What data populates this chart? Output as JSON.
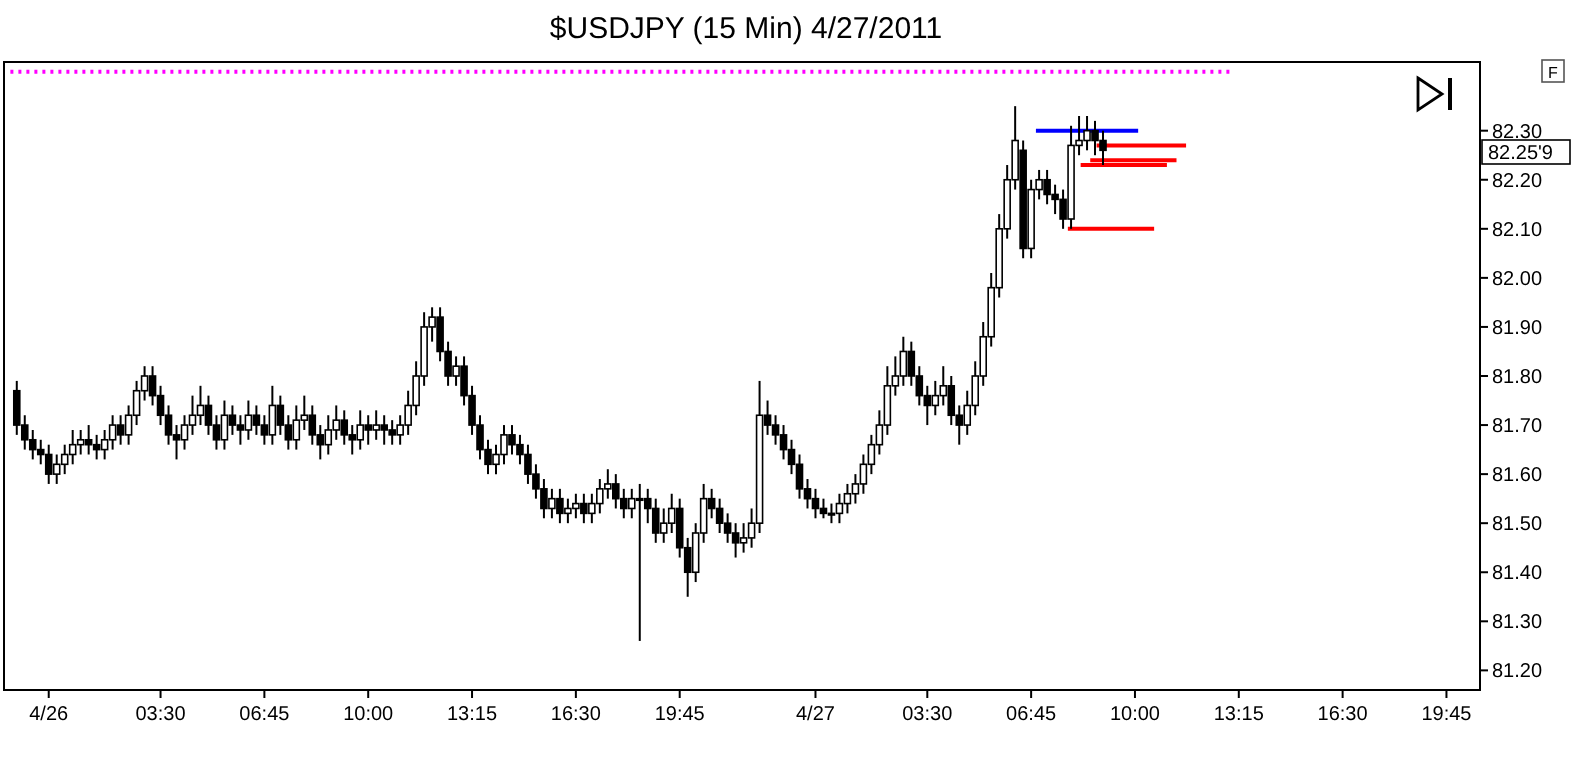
{
  "chart_data": {
    "type": "candlestick",
    "title": "$USDJPY (15 Min)  4/27/2011",
    "x": [
      "2011-04-25T23:00",
      "2011-04-25T23:15",
      "2011-04-25T23:30",
      "2011-04-25T23:45",
      "2011-04-26T00:00",
      "2011-04-26T00:15",
      "2011-04-26T00:30",
      "2011-04-26T00:45",
      "2011-04-26T01:00",
      "2011-04-26T01:15",
      "2011-04-26T01:30",
      "2011-04-26T01:45",
      "2011-04-26T02:00",
      "2011-04-26T02:15",
      "2011-04-26T02:30",
      "2011-04-26T02:45",
      "2011-04-26T03:00",
      "2011-04-26T03:15",
      "2011-04-26T03:30",
      "2011-04-26T03:45",
      "2011-04-26T04:00",
      "2011-04-26T04:15",
      "2011-04-26T04:30",
      "2011-04-26T04:45",
      "2011-04-26T05:00",
      "2011-04-26T05:15",
      "2011-04-26T05:30",
      "2011-04-26T05:45",
      "2011-04-26T06:00",
      "2011-04-26T06:15",
      "2011-04-26T06:30",
      "2011-04-26T06:45",
      "2011-04-26T07:00",
      "2011-04-26T07:15",
      "2011-04-26T07:30",
      "2011-04-26T07:45",
      "2011-04-26T08:00",
      "2011-04-26T08:15",
      "2011-04-26T08:30",
      "2011-04-26T08:45",
      "2011-04-26T09:00",
      "2011-04-26T09:15",
      "2011-04-26T09:30",
      "2011-04-26T09:45",
      "2011-04-26T10:00",
      "2011-04-26T10:15",
      "2011-04-26T10:30",
      "2011-04-26T10:45",
      "2011-04-26T11:00",
      "2011-04-26T11:15",
      "2011-04-26T11:30",
      "2011-04-26T11:45",
      "2011-04-26T12:00",
      "2011-04-26T12:15",
      "2011-04-26T12:30",
      "2011-04-26T12:45",
      "2011-04-26T13:00",
      "2011-04-26T13:15",
      "2011-04-26T13:30",
      "2011-04-26T13:45",
      "2011-04-26T14:00",
      "2011-04-26T14:15",
      "2011-04-26T14:30",
      "2011-04-26T14:45",
      "2011-04-26T15:00",
      "2011-04-26T15:15",
      "2011-04-26T15:30",
      "2011-04-26T15:45",
      "2011-04-26T16:00",
      "2011-04-26T16:15",
      "2011-04-26T16:30",
      "2011-04-26T16:45",
      "2011-04-26T17:00",
      "2011-04-26T17:15",
      "2011-04-26T17:30",
      "2011-04-26T17:45",
      "2011-04-26T18:00",
      "2011-04-26T18:15",
      "2011-04-26T18:30",
      "2011-04-26T18:45",
      "2011-04-26T19:00",
      "2011-04-26T19:15",
      "2011-04-26T19:30",
      "2011-04-26T19:45",
      "2011-04-26T20:00",
      "2011-04-26T20:15",
      "2011-04-26T20:30",
      "2011-04-26T20:45",
      "2011-04-26T21:00",
      "2011-04-26T21:15",
      "2011-04-26T21:30",
      "2011-04-26T21:45",
      "2011-04-26T22:00",
      "2011-04-26T22:15",
      "2011-04-26T22:30",
      "2011-04-26T22:45",
      "2011-04-26T23:00",
      "2011-04-26T23:15",
      "2011-04-26T23:30",
      "2011-04-26T23:45",
      "2011-04-27T00:00",
      "2011-04-27T00:15",
      "2011-04-27T00:30",
      "2011-04-27T00:45",
      "2011-04-27T01:00",
      "2011-04-27T01:15",
      "2011-04-27T01:30",
      "2011-04-27T01:45",
      "2011-04-27T02:00",
      "2011-04-27T02:15",
      "2011-04-27T02:30",
      "2011-04-27T02:45",
      "2011-04-27T03:00",
      "2011-04-27T03:15",
      "2011-04-27T03:30",
      "2011-04-27T03:45",
      "2011-04-27T04:00",
      "2011-04-27T04:15",
      "2011-04-27T04:30",
      "2011-04-27T04:45",
      "2011-04-27T05:00",
      "2011-04-27T05:15",
      "2011-04-27T05:30",
      "2011-04-27T05:45",
      "2011-04-27T06:00",
      "2011-04-27T06:15",
      "2011-04-27T06:30",
      "2011-04-27T06:45",
      "2011-04-27T07:00",
      "2011-04-27T07:15",
      "2011-04-27T07:30",
      "2011-04-27T07:45",
      "2011-04-27T08:00",
      "2011-04-27T08:15",
      "2011-04-27T08:30",
      "2011-04-27T08:45",
      "2011-04-27T09:00"
    ],
    "ohlc": [
      [
        81.77,
        81.79,
        81.68,
        81.7
      ],
      [
        81.7,
        81.72,
        81.65,
        81.67
      ],
      [
        81.67,
        81.69,
        81.63,
        81.65
      ],
      [
        81.65,
        81.67,
        81.62,
        81.64
      ],
      [
        81.64,
        81.66,
        81.58,
        81.6
      ],
      [
        81.6,
        81.64,
        81.58,
        81.62
      ],
      [
        81.62,
        81.66,
        81.6,
        81.64
      ],
      [
        81.64,
        81.69,
        81.62,
        81.66
      ],
      [
        81.66,
        81.69,
        81.64,
        81.67
      ],
      [
        81.67,
        81.7,
        81.64,
        81.66
      ],
      [
        81.66,
        81.68,
        81.63,
        81.65
      ],
      [
        81.65,
        81.69,
        81.63,
        81.67
      ],
      [
        81.67,
        81.72,
        81.65,
        81.7
      ],
      [
        81.7,
        81.72,
        81.66,
        81.68
      ],
      [
        81.68,
        81.74,
        81.66,
        81.72
      ],
      [
        81.72,
        81.79,
        81.7,
        81.77
      ],
      [
        81.77,
        81.82,
        81.75,
        81.8
      ],
      [
        81.8,
        81.82,
        81.74,
        81.76
      ],
      [
        81.76,
        81.78,
        81.7,
        81.72
      ],
      [
        81.72,
        81.74,
        81.66,
        81.68
      ],
      [
        81.68,
        81.7,
        81.63,
        81.67
      ],
      [
        81.67,
        81.72,
        81.65,
        81.7
      ],
      [
        81.7,
        81.76,
        81.68,
        81.72
      ],
      [
        81.72,
        81.78,
        81.7,
        81.74
      ],
      [
        81.74,
        81.76,
        81.68,
        81.7
      ],
      [
        81.7,
        81.72,
        81.65,
        81.67
      ],
      [
        81.67,
        81.75,
        81.65,
        81.72
      ],
      [
        81.72,
        81.74,
        81.68,
        81.7
      ],
      [
        81.7,
        81.72,
        81.66,
        81.69
      ],
      [
        81.69,
        81.75,
        81.67,
        81.72
      ],
      [
        81.72,
        81.74,
        81.68,
        81.7
      ],
      [
        81.7,
        81.72,
        81.66,
        81.68
      ],
      [
        81.68,
        81.78,
        81.66,
        81.74
      ],
      [
        81.74,
        81.76,
        81.68,
        81.7
      ],
      [
        81.7,
        81.72,
        81.65,
        81.67
      ],
      [
        81.67,
        81.74,
        81.65,
        81.71
      ],
      [
        81.71,
        81.76,
        81.69,
        81.72
      ],
      [
        81.72,
        81.74,
        81.66,
        81.68
      ],
      [
        81.68,
        81.7,
        81.63,
        81.66
      ],
      [
        81.66,
        81.72,
        81.64,
        81.69
      ],
      [
        81.69,
        81.74,
        81.67,
        81.71
      ],
      [
        81.71,
        81.73,
        81.66,
        81.68
      ],
      [
        81.68,
        81.7,
        81.64,
        81.67
      ],
      [
        81.67,
        81.73,
        81.65,
        81.7
      ],
      [
        81.7,
        81.72,
        81.66,
        81.69
      ],
      [
        81.69,
        81.73,
        81.67,
        81.7
      ],
      [
        81.7,
        81.72,
        81.66,
        81.69
      ],
      [
        81.69,
        81.71,
        81.66,
        81.68
      ],
      [
        81.68,
        81.72,
        81.66,
        81.7
      ],
      [
        81.7,
        81.77,
        81.68,
        81.74
      ],
      [
        81.74,
        81.83,
        81.72,
        81.8
      ],
      [
        81.8,
        81.93,
        81.78,
        81.9
      ],
      [
        81.9,
        81.94,
        81.87,
        81.92
      ],
      [
        81.92,
        81.94,
        81.83,
        81.85
      ],
      [
        81.85,
        81.87,
        81.78,
        81.8
      ],
      [
        81.8,
        81.84,
        81.78,
        81.82
      ],
      [
        81.82,
        81.84,
        81.74,
        81.76
      ],
      [
        81.76,
        81.78,
        81.68,
        81.7
      ],
      [
        81.7,
        81.72,
        81.63,
        81.65
      ],
      [
        81.65,
        81.67,
        81.6,
        81.62
      ],
      [
        81.62,
        81.66,
        81.6,
        81.64
      ],
      [
        81.64,
        81.7,
        81.62,
        81.68
      ],
      [
        81.68,
        81.7,
        81.64,
        81.66
      ],
      [
        81.66,
        81.68,
        81.62,
        81.64
      ],
      [
        81.64,
        81.66,
        81.58,
        81.6
      ],
      [
        81.6,
        81.62,
        81.55,
        81.57
      ],
      [
        81.57,
        81.59,
        81.51,
        81.53
      ],
      [
        81.53,
        81.57,
        81.51,
        81.55
      ],
      [
        81.55,
        81.57,
        81.5,
        81.52
      ],
      [
        81.52,
        81.55,
        81.5,
        81.53
      ],
      [
        81.53,
        81.56,
        81.51,
        81.54
      ],
      [
        81.54,
        81.56,
        81.5,
        81.52
      ],
      [
        81.52,
        81.56,
        81.5,
        81.54
      ],
      [
        81.54,
        81.59,
        81.52,
        81.57
      ],
      [
        81.57,
        81.61,
        81.55,
        81.58
      ],
      [
        81.58,
        81.6,
        81.53,
        81.55
      ],
      [
        81.55,
        81.57,
        81.51,
        81.53
      ],
      [
        81.53,
        81.57,
        81.51,
        81.55
      ],
      [
        81.55,
        81.58,
        81.26,
        81.55
      ],
      [
        81.55,
        81.57,
        81.5,
        81.53
      ],
      [
        81.53,
        81.55,
        81.46,
        81.48
      ],
      [
        81.48,
        81.53,
        81.46,
        81.5
      ],
      [
        81.5,
        81.56,
        81.48,
        81.53
      ],
      [
        81.53,
        81.55,
        81.43,
        81.45
      ],
      [
        81.45,
        81.47,
        81.35,
        81.4
      ],
      [
        81.4,
        81.5,
        81.38,
        81.48
      ],
      [
        81.48,
        81.58,
        81.46,
        81.55
      ],
      [
        81.55,
        81.57,
        81.51,
        81.53
      ],
      [
        81.53,
        81.55,
        81.48,
        81.5
      ],
      [
        81.5,
        81.52,
        81.46,
        81.48
      ],
      [
        81.48,
        81.5,
        81.43,
        81.46
      ],
      [
        81.46,
        81.5,
        81.44,
        81.47
      ],
      [
        81.47,
        81.53,
        81.45,
        81.5
      ],
      [
        81.5,
        81.79,
        81.48,
        81.72
      ],
      [
        81.72,
        81.75,
        81.68,
        81.7
      ],
      [
        81.7,
        81.72,
        81.66,
        81.68
      ],
      [
        81.68,
        81.7,
        81.63,
        81.65
      ],
      [
        81.65,
        81.67,
        81.6,
        81.62
      ],
      [
        81.62,
        81.64,
        81.55,
        81.57
      ],
      [
        81.57,
        81.59,
        81.53,
        81.55
      ],
      [
        81.55,
        81.57,
        81.51,
        81.53
      ],
      [
        81.53,
        81.55,
        81.51,
        81.52
      ],
      [
        81.52,
        81.54,
        81.5,
        81.52
      ],
      [
        81.52,
        81.56,
        81.5,
        81.54
      ],
      [
        81.54,
        81.58,
        81.52,
        81.56
      ],
      [
        81.56,
        81.6,
        81.54,
        81.58
      ],
      [
        81.58,
        81.64,
        81.56,
        81.62
      ],
      [
        81.62,
        81.68,
        81.6,
        81.66
      ],
      [
        81.66,
        81.73,
        81.64,
        81.7
      ],
      [
        81.7,
        81.82,
        81.68,
        81.78
      ],
      [
        81.78,
        81.84,
        81.76,
        81.8
      ],
      [
        81.8,
        81.88,
        81.78,
        81.85
      ],
      [
        81.85,
        81.87,
        81.78,
        81.8
      ],
      [
        81.8,
        81.82,
        81.74,
        81.76
      ],
      [
        81.76,
        81.78,
        81.7,
        81.74
      ],
      [
        81.74,
        81.79,
        81.72,
        81.76
      ],
      [
        81.76,
        81.82,
        81.74,
        81.78
      ],
      [
        81.78,
        81.8,
        81.7,
        81.72
      ],
      [
        81.72,
        81.74,
        81.66,
        81.7
      ],
      [
        81.7,
        81.77,
        81.68,
        81.74
      ],
      [
        81.74,
        81.83,
        81.72,
        81.8
      ],
      [
        81.8,
        81.91,
        81.78,
        81.88
      ],
      [
        81.88,
        82.01,
        81.86,
        81.98
      ],
      [
        81.98,
        82.13,
        81.96,
        82.1
      ],
      [
        82.1,
        82.23,
        82.08,
        82.2
      ],
      [
        82.2,
        82.35,
        82.18,
        82.28
      ],
      [
        82.26,
        82.28,
        82.04,
        82.06
      ],
      [
        82.06,
        82.2,
        82.04,
        82.18
      ],
      [
        82.18,
        82.22,
        82.16,
        82.2
      ],
      [
        82.2,
        82.22,
        82.15,
        82.17
      ],
      [
        82.17,
        82.19,
        82.13,
        82.16
      ],
      [
        82.16,
        82.18,
        82.1,
        82.12
      ],
      [
        82.12,
        82.31,
        82.1,
        82.27
      ],
      [
        82.27,
        82.33,
        82.25,
        82.28
      ],
      [
        82.28,
        82.33,
        82.26,
        82.3
      ],
      [
        82.3,
        82.32,
        82.25,
        82.28
      ],
      [
        82.28,
        82.3,
        82.23,
        82.26
      ]
    ],
    "series": [
      {
        "type": "line",
        "color": "#ff00ff",
        "line_style": "dotted",
        "x": [
          "2011-04-25T22:48",
          "2011-04-27T13:00"
        ],
        "values": [
          82.42,
          82.42
        ]
      },
      {
        "type": "line",
        "color": "#0000ff",
        "line_style": "solid",
        "x": [
          "2011-04-27T06:54",
          "2011-04-27T10:06"
        ],
        "values": [
          82.3,
          82.3
        ]
      },
      {
        "type": "line",
        "color": "#ff0000",
        "line_style": "solid",
        "x": [
          "2011-04-27T08:48",
          "2011-04-27T11:36"
        ],
        "values": [
          82.27,
          82.27
        ]
      },
      {
        "type": "line",
        "color": "#ff0000",
        "line_style": "solid",
        "x": [
          "2011-04-27T08:36",
          "2011-04-27T11:18"
        ],
        "values": [
          82.24,
          82.24
        ]
      },
      {
        "type": "line",
        "color": "#ff0000",
        "line_style": "solid",
        "x": [
          "2011-04-27T08:18",
          "2011-04-27T11:00"
        ],
        "values": [
          82.23,
          82.23
        ]
      },
      {
        "type": "line",
        "color": "#ff0000",
        "line_style": "solid",
        "x": [
          "2011-04-27T07:54",
          "2011-04-27T10:36"
        ],
        "values": [
          82.1,
          82.1
        ]
      }
    ],
    "xlim": [
      "2011-04-25T22:36",
      "2011-04-27T20:48"
    ],
    "xticks": [
      {
        "value": "2011-04-26T00:00",
        "label": "4/26"
      },
      {
        "value": "2011-04-26T03:30",
        "label": "03:30"
      },
      {
        "value": "2011-04-26T06:45",
        "label": "06:45"
      },
      {
        "value": "2011-04-26T10:00",
        "label": "10:00"
      },
      {
        "value": "2011-04-26T13:15",
        "label": "13:15"
      },
      {
        "value": "2011-04-26T16:30",
        "label": "16:30"
      },
      {
        "value": "2011-04-26T19:45",
        "label": "19:45"
      },
      {
        "value": "2011-04-27T00:00",
        "label": "4/27"
      },
      {
        "value": "2011-04-27T03:30",
        "label": "03:30"
      },
      {
        "value": "2011-04-27T06:45",
        "label": "06:45"
      },
      {
        "value": "2011-04-27T10:00",
        "label": "10:00"
      },
      {
        "value": "2011-04-27T13:15",
        "label": "13:15"
      },
      {
        "value": "2011-04-27T16:30",
        "label": "16:30"
      },
      {
        "value": "2011-04-27T19:45",
        "label": "19:45"
      }
    ],
    "ylim": [
      81.16,
      82.44
    ],
    "yticks": [
      {
        "value": 81.2,
        "label": "81.20"
      },
      {
        "value": 81.3,
        "label": "81.30"
      },
      {
        "value": 81.4,
        "label": "81.40"
      },
      {
        "value": 81.5,
        "label": "81.50"
      },
      {
        "value": 81.6,
        "label": "81.60"
      },
      {
        "value": 81.7,
        "label": "81.70"
      },
      {
        "value": 81.8,
        "label": "81.80"
      },
      {
        "value": 81.9,
        "label": "81.90"
      },
      {
        "value": 82.0,
        "label": "82.00"
      },
      {
        "value": 82.1,
        "label": "82.10"
      },
      {
        "value": 82.2,
        "label": "82.20"
      },
      {
        "value": 82.3,
        "label": "82.30"
      }
    ],
    "annotations": [
      "F",
      "82.25'9"
    ]
  }
}
